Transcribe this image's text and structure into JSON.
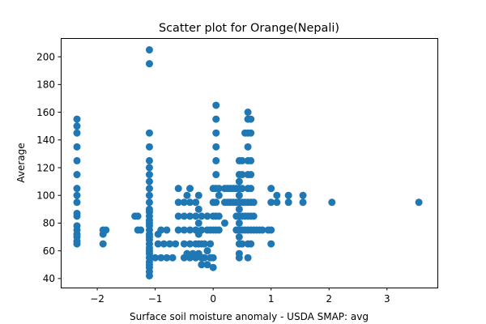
{
  "chart_data": {
    "type": "scatter",
    "title": "Scatter plot for Orange(Nepali)",
    "xlabel": "Surface soil moisture anomaly  - USDA SMAP: avg",
    "ylabel": "Average",
    "xlim": [
      -2.63,
      3.87
    ],
    "ylim": [
      33.5,
      213.5
    ],
    "xticks": [
      -2,
      -1,
      0,
      1,
      2,
      3
    ],
    "xtick_labels": [
      "−2",
      "−1",
      "0",
      "1",
      "2",
      "3"
    ],
    "yticks": [
      40,
      60,
      80,
      100,
      120,
      140,
      160,
      180,
      200
    ],
    "ytick_labels": [
      "40",
      "60",
      "80",
      "100",
      "120",
      "140",
      "160",
      "180",
      "200"
    ],
    "grid": false,
    "marker_color": "#1f77b4",
    "series": [
      {
        "points": [
          [
            -2.35,
            65
          ],
          [
            -2.35,
            67
          ],
          [
            -2.35,
            70
          ],
          [
            -2.35,
            72
          ],
          [
            -2.35,
            75
          ],
          [
            -2.35,
            78
          ],
          [
            -2.35,
            85
          ],
          [
            -2.35,
            87
          ],
          [
            -2.35,
            95
          ],
          [
            -2.35,
            100
          ],
          [
            -2.35,
            105
          ],
          [
            -2.35,
            115
          ],
          [
            -2.35,
            125
          ],
          [
            -2.35,
            135
          ],
          [
            -2.35,
            145
          ],
          [
            -2.35,
            150
          ],
          [
            -2.35,
            155
          ],
          [
            -1.9,
            65
          ],
          [
            -1.9,
            72
          ],
          [
            -1.9,
            75
          ],
          [
            -1.85,
            75
          ],
          [
            -1.35,
            85
          ],
          [
            -1.3,
            85
          ],
          [
            -1.3,
            75
          ],
          [
            -1.25,
            75
          ],
          [
            -1.1,
            42
          ],
          [
            -1.1,
            45
          ],
          [
            -1.1,
            48
          ],
          [
            -1.1,
            50
          ],
          [
            -1.1,
            52
          ],
          [
            -1.1,
            55
          ],
          [
            -1.1,
            58
          ],
          [
            -1.1,
            60
          ],
          [
            -1.1,
            62
          ],
          [
            -1.1,
            65
          ],
          [
            -1.1,
            68
          ],
          [
            -1.1,
            70
          ],
          [
            -1.1,
            72
          ],
          [
            -1.1,
            75
          ],
          [
            -1.1,
            78
          ],
          [
            -1.1,
            80
          ],
          [
            -1.1,
            82
          ],
          [
            -1.1,
            85
          ],
          [
            -1.1,
            88
          ],
          [
            -1.1,
            90
          ],
          [
            -1.1,
            95
          ],
          [
            -1.1,
            100
          ],
          [
            -1.1,
            105
          ],
          [
            -1.1,
            110
          ],
          [
            -1.1,
            115
          ],
          [
            -1.1,
            120
          ],
          [
            -1.1,
            125
          ],
          [
            -1.1,
            135
          ],
          [
            -1.1,
            145
          ],
          [
            -1.1,
            195
          ],
          [
            -1.1,
            205
          ],
          [
            -1.0,
            55
          ],
          [
            -0.95,
            65
          ],
          [
            -0.95,
            72
          ],
          [
            -0.9,
            55
          ],
          [
            -0.9,
            75
          ],
          [
            -0.85,
            65
          ],
          [
            -0.8,
            55
          ],
          [
            -0.8,
            75
          ],
          [
            -0.75,
            65
          ],
          [
            -0.7,
            55
          ],
          [
            -0.65,
            65
          ],
          [
            -0.6,
            75
          ],
          [
            -0.6,
            85
          ],
          [
            -0.6,
            95
          ],
          [
            -0.6,
            105
          ],
          [
            -0.5,
            55
          ],
          [
            -0.5,
            65
          ],
          [
            -0.5,
            75
          ],
          [
            -0.5,
            85
          ],
          [
            -0.5,
            95
          ],
          [
            -0.45,
            58
          ],
          [
            -0.45,
            100
          ],
          [
            -0.4,
            55
          ],
          [
            -0.4,
            65
          ],
          [
            -0.4,
            75
          ],
          [
            -0.4,
            85
          ],
          [
            -0.4,
            95
          ],
          [
            -0.4,
            105
          ],
          [
            -0.35,
            58
          ],
          [
            -0.3,
            55
          ],
          [
            -0.3,
            65
          ],
          [
            -0.3,
            75
          ],
          [
            -0.3,
            85
          ],
          [
            -0.3,
            95
          ],
          [
            -0.25,
            58
          ],
          [
            -0.25,
            65
          ],
          [
            -0.25,
            72
          ],
          [
            -0.25,
            80
          ],
          [
            -0.25,
            90
          ],
          [
            -0.25,
            100
          ],
          [
            -0.2,
            50
          ],
          [
            -0.2,
            55
          ],
          [
            -0.2,
            65
          ],
          [
            -0.2,
            75
          ],
          [
            -0.2,
            85
          ],
          [
            -0.15,
            55
          ],
          [
            -0.15,
            65
          ],
          [
            -0.1,
            50
          ],
          [
            -0.1,
            60
          ],
          [
            -0.1,
            75
          ],
          [
            -0.1,
            85
          ],
          [
            -0.05,
            55
          ],
          [
            -0.05,
            65
          ],
          [
            -0.05,
            75
          ],
          [
            0.0,
            48
          ],
          [
            0.0,
            55
          ],
          [
            0.0,
            75
          ],
          [
            0.0,
            85
          ],
          [
            0.0,
            95
          ],
          [
            0.0,
            105
          ],
          [
            0.05,
            75
          ],
          [
            0.05,
            85
          ],
          [
            0.05,
            95
          ],
          [
            0.05,
            105
          ],
          [
            0.05,
            115
          ],
          [
            0.05,
            125
          ],
          [
            0.05,
            135
          ],
          [
            0.05,
            145
          ],
          [
            0.05,
            155
          ],
          [
            0.05,
            165
          ],
          [
            0.1,
            75
          ],
          [
            0.1,
            85
          ],
          [
            0.1,
            100
          ],
          [
            0.1,
            105
          ],
          [
            0.2,
            80
          ],
          [
            0.2,
            95
          ],
          [
            0.2,
            105
          ],
          [
            0.25,
            95
          ],
          [
            0.25,
            105
          ],
          [
            0.3,
            95
          ],
          [
            0.3,
            105
          ],
          [
            0.35,
            95
          ],
          [
            0.35,
            105
          ],
          [
            0.4,
            75
          ],
          [
            0.4,
            85
          ],
          [
            0.4,
            95
          ],
          [
            0.4,
            105
          ],
          [
            0.45,
            55
          ],
          [
            0.45,
            58
          ],
          [
            0.45,
            65
          ],
          [
            0.45,
            70
          ],
          [
            0.45,
            75
          ],
          [
            0.45,
            80
          ],
          [
            0.45,
            85
          ],
          [
            0.45,
            90
          ],
          [
            0.45,
            95
          ],
          [
            0.45,
            100
          ],
          [
            0.45,
            105
          ],
          [
            0.45,
            110
          ],
          [
            0.45,
            115
          ],
          [
            0.45,
            125
          ],
          [
            0.5,
            65
          ],
          [
            0.5,
            75
          ],
          [
            0.5,
            85
          ],
          [
            0.5,
            95
          ],
          [
            0.5,
            105
          ],
          [
            0.5,
            115
          ],
          [
            0.5,
            125
          ],
          [
            0.55,
            75
          ],
          [
            0.55,
            85
          ],
          [
            0.55,
            95
          ],
          [
            0.55,
            145
          ],
          [
            0.6,
            55
          ],
          [
            0.6,
            65
          ],
          [
            0.6,
            75
          ],
          [
            0.6,
            85
          ],
          [
            0.6,
            95
          ],
          [
            0.6,
            105
          ],
          [
            0.6,
            115
          ],
          [
            0.6,
            125
          ],
          [
            0.6,
            135
          ],
          [
            0.6,
            145
          ],
          [
            0.6,
            155
          ],
          [
            0.6,
            160
          ],
          [
            0.65,
            65
          ],
          [
            0.65,
            75
          ],
          [
            0.65,
            85
          ],
          [
            0.65,
            95
          ],
          [
            0.65,
            105
          ],
          [
            0.65,
            115
          ],
          [
            0.65,
            125
          ],
          [
            0.65,
            145
          ],
          [
            0.65,
            155
          ],
          [
            0.7,
            75
          ],
          [
            0.7,
            85
          ],
          [
            0.7,
            95
          ],
          [
            0.75,
            75
          ],
          [
            0.8,
            75
          ],
          [
            0.85,
            75
          ],
          [
            0.95,
            75
          ],
          [
            1.0,
            65
          ],
          [
            1.0,
            75
          ],
          [
            1.0,
            95
          ],
          [
            1.0,
            105
          ],
          [
            1.1,
            95
          ],
          [
            1.1,
            100
          ],
          [
            1.3,
            95
          ],
          [
            1.3,
            100
          ],
          [
            1.55,
            95
          ],
          [
            1.55,
            100
          ],
          [
            2.05,
            95
          ],
          [
            3.55,
            95
          ]
        ]
      }
    ]
  }
}
